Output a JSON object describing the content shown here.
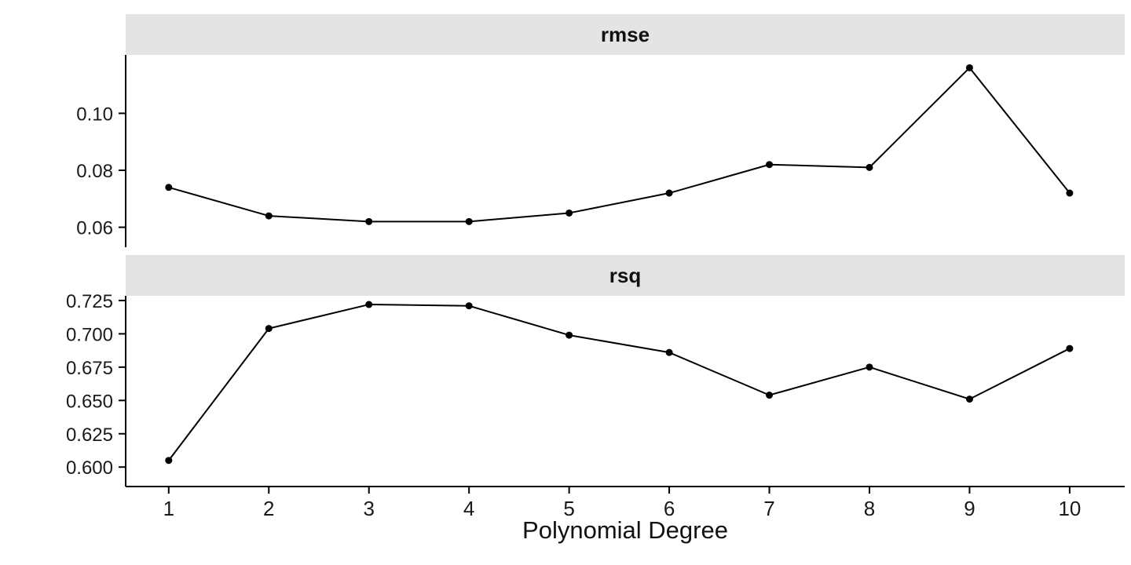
{
  "chart_data": {
    "type": "line",
    "facet_layout": "rows",
    "grid": "off",
    "legend": "none",
    "xlabel": "Polynomial Degree",
    "x_tick_labels": [
      "1",
      "2",
      "3",
      "4",
      "5",
      "6",
      "7",
      "8",
      "9",
      "10"
    ],
    "xlim": [
      0.57,
      10.55
    ],
    "colors": {
      "line": "#000000",
      "point": "#000000",
      "strip_bg": "#e4e4e4",
      "text": "#1a1a1a",
      "background": "#ffffff"
    },
    "facets": [
      {
        "label": "rmse",
        "x": [
          1,
          2,
          3,
          4,
          5,
          6,
          7,
          8,
          9,
          10
        ],
        "values": [
          0.074,
          0.064,
          0.062,
          0.062,
          0.065,
          0.072,
          0.082,
          0.081,
          0.116,
          0.072
        ],
        "yticks": [
          0.06,
          0.08,
          0.1
        ],
        "ytick_labels": [
          "0.06",
          "0.08",
          "0.10"
        ],
        "ylim": [
          0.053,
          0.1205
        ]
      },
      {
        "label": "rsq",
        "x": [
          1,
          2,
          3,
          4,
          5,
          6,
          7,
          8,
          9,
          10
        ],
        "values": [
          0.605,
          0.704,
          0.722,
          0.721,
          0.699,
          0.686,
          0.654,
          0.675,
          0.651,
          0.689
        ],
        "yticks": [
          0.6,
          0.625,
          0.65,
          0.675,
          0.7,
          0.725
        ],
        "ytick_labels": [
          "0.600",
          "0.625",
          "0.650",
          "0.675",
          "0.700",
          "0.725"
        ],
        "ylim": [
          0.5854,
          0.7285
        ]
      }
    ]
  }
}
